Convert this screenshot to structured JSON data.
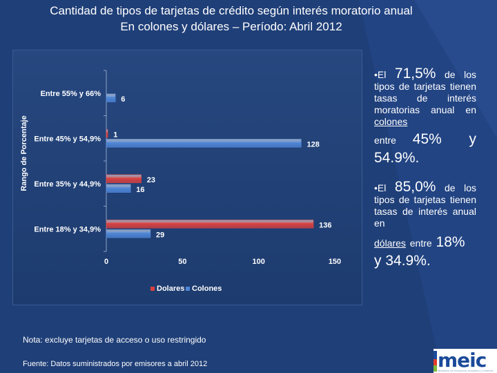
{
  "title": {
    "line1": "Cantidad de tipos de tarjetas de crédito según interés moratorio anual",
    "line2": "En colones y dólares – Período: Abril 2012"
  },
  "colors": {
    "dolares": "#d9413f",
    "colones": "#4f86d6",
    "background": "#1f3f78"
  },
  "chart_data": {
    "type": "bar",
    "orientation": "horizontal",
    "ylabel": "Rango de Porcentaje",
    "categories": [
      "Entre 55% y 66%",
      "Entre 45% y 54,9%",
      "Entre 35% y 44,9%",
      "Entre 18% y 34,9%"
    ],
    "series": [
      {
        "name": "Dolares",
        "values": [
          null,
          1,
          23,
          136
        ],
        "labels": [
          "",
          "1",
          "23",
          "136"
        ]
      },
      {
        "name": "Colones",
        "values": [
          6,
          128,
          16,
          29
        ],
        "labels": [
          "6",
          "128",
          "16",
          "29"
        ]
      }
    ],
    "xlim": [
      0,
      150
    ],
    "xticks": [
      "0",
      "50",
      "100",
      "150"
    ],
    "legend": [
      "Dolares",
      "Colones"
    ],
    "legend_position": "bottom"
  },
  "bullets": [
    {
      "prefix": "•El",
      "big": "71,5%",
      "text": "de los tipos de tarjetas tienen tasas de interés moratorias anual en",
      "currency": "colones",
      "pre_range": "entre",
      "range_a": "45%",
      "range_conj": "y",
      "range_b": "54.9%."
    },
    {
      "prefix": "•El",
      "big": "85,0%",
      "text": "de los tipos de tarjetas tienen tasas de interés anual en",
      "currency": "dólares",
      "pre_range": "entre",
      "range_a": "18%",
      "range_conj": "y",
      "range_b": "34.9%."
    }
  ],
  "note": "Nota: excluye tarjetas de acceso o uso restringido",
  "source": "Fuente: Datos suministrados por emisores a abril 2012",
  "logo": {
    "text": "meic",
    "subtitle": "Ministerio de Economía, Industria y Comercio"
  }
}
